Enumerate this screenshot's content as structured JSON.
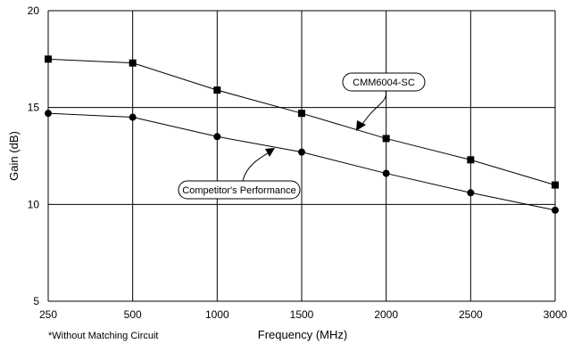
{
  "chart_data": {
    "type": "line",
    "title": "",
    "xlabel": "Frequency (MHz)",
    "ylabel": "Gain (dB)",
    "note": "*Without Matching Circuit",
    "x": [
      250,
      500,
      1000,
      1500,
      2000,
      2500,
      3000
    ],
    "x_tick_labels": [
      "250",
      "500",
      "1000",
      "1500",
      "2000",
      "2500",
      "3000"
    ],
    "y_tick_labels": [
      "5",
      "10",
      "15",
      "20"
    ],
    "ylim": [
      5,
      20
    ],
    "grid": true,
    "series": [
      {
        "name": "CMM6004-SC",
        "marker": "square",
        "color": "#000000",
        "values": [
          17.5,
          17.3,
          15.9,
          14.7,
          13.4,
          12.3,
          11.0
        ]
      },
      {
        "name": "Competitor's Performance",
        "marker": "circle",
        "color": "#000000",
        "values": [
          14.7,
          14.5,
          13.5,
          12.7,
          11.6,
          10.6,
          9.7
        ]
      }
    ]
  }
}
